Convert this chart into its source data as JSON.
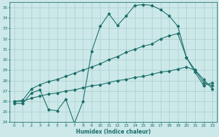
{
  "xlabel": "Humidex (Indice chaleur)",
  "ylabel": "",
  "bg_color": "#cce8e8",
  "grid_color": "#aacccc",
  "line_color": "#1a6e6a",
  "xlim": [
    -0.5,
    23.5
  ],
  "ylim": [
    24,
    35.5
  ],
  "xtick_labels": [
    "0",
    "1",
    "2",
    "3",
    "4",
    "5",
    "6",
    "7",
    "8",
    "9",
    "10",
    "11",
    "12",
    "13",
    "14",
    "15",
    "16",
    "17",
    "18",
    "19",
    "20",
    "21",
    "22",
    "23"
  ],
  "ytick_labels": [
    "24",
    "25",
    "26",
    "27",
    "28",
    "29",
    "30",
    "31",
    "32",
    "33",
    "34",
    "35"
  ],
  "ytick_vals": [
    24,
    25,
    26,
    27,
    28,
    29,
    30,
    31,
    32,
    33,
    34,
    35
  ],
  "line1_x": [
    0,
    1,
    2,
    3,
    4,
    5,
    6,
    7,
    8,
    9,
    10,
    11,
    12,
    13,
    14,
    15,
    16,
    17,
    18,
    19,
    20,
    21,
    22,
    23
  ],
  "line1_y": [
    25.8,
    25.8,
    26.8,
    27.1,
    25.2,
    25.1,
    26.2,
    23.9,
    26.0,
    30.8,
    33.2,
    34.4,
    33.3,
    34.2,
    35.2,
    35.3,
    35.2,
    34.8,
    34.2,
    33.2,
    30.2,
    29.0,
    28.1,
    27.2
  ],
  "line2_x": [
    0,
    1,
    2,
    3,
    4,
    5,
    6,
    7,
    8,
    9,
    10,
    11,
    12,
    13,
    14,
    15,
    16,
    17,
    18,
    19,
    20,
    21,
    22,
    23
  ],
  "line2_y": [
    26.0,
    26.1,
    27.2,
    27.6,
    27.9,
    28.1,
    28.4,
    28.7,
    29.0,
    29.3,
    29.6,
    30.0,
    30.3,
    30.7,
    31.0,
    31.3,
    31.5,
    32.0,
    32.3,
    32.5,
    30.2,
    28.8,
    27.5,
    27.8
  ],
  "line3_x": [
    0,
    1,
    2,
    3,
    4,
    5,
    6,
    7,
    8,
    9,
    10,
    11,
    12,
    13,
    14,
    15,
    16,
    17,
    18,
    19,
    20,
    21,
    22,
    23
  ],
  "line3_y": [
    26.0,
    26.0,
    26.3,
    26.5,
    26.7,
    26.8,
    27.0,
    27.1,
    27.3,
    27.5,
    27.6,
    27.8,
    28.0,
    28.1,
    28.3,
    28.4,
    28.6,
    28.8,
    28.9,
    29.1,
    29.3,
    29.0,
    27.8,
    27.5
  ]
}
